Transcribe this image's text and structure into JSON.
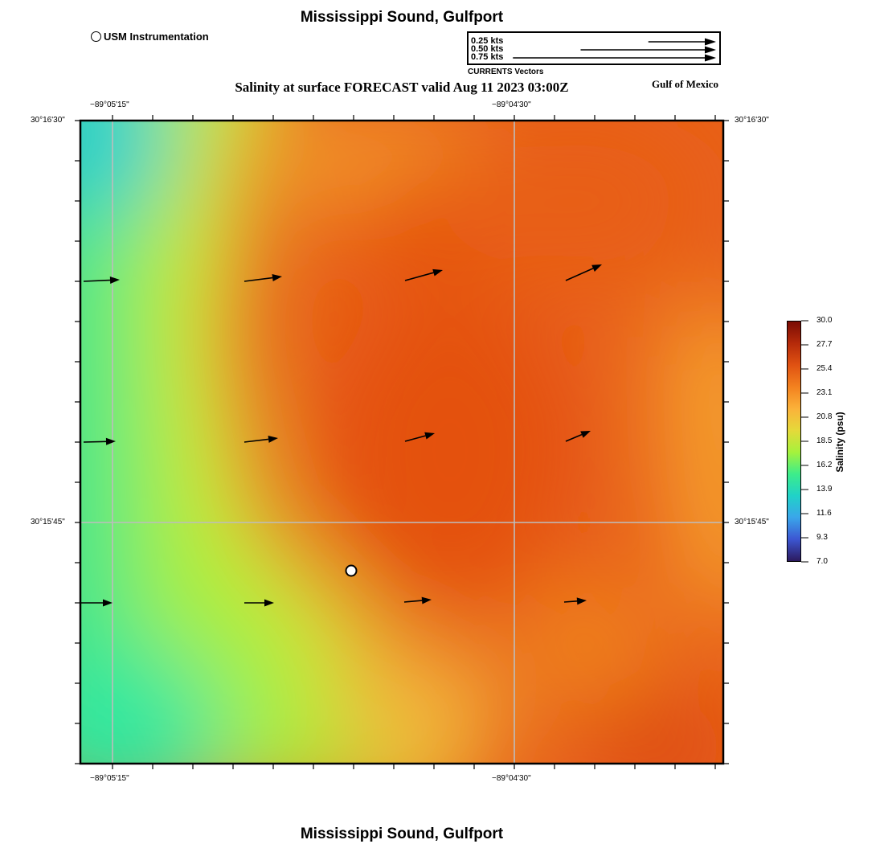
{
  "header": {
    "title_top": "Mississippi Sound, Gulfport",
    "title_bottom": "Mississippi Sound, Gulfport",
    "map_title": "Salinity at surface FORECAST valid Aug 11 2023 03:00Z",
    "region": "Gulf of Mexico"
  },
  "legend": {
    "station_label": "USM Instrumentation",
    "vector_labels": [
      "0.25 kts",
      "0.50 kts",
      "0.75 kts"
    ],
    "vector_speeds_kts": [
      0.25,
      0.5,
      0.75
    ],
    "vector_caption": "CURRENTS Vectors"
  },
  "map": {
    "lon_labels_top": [
      "−89°05'15\"",
      "−89°04'30\""
    ],
    "lon_labels_bottom": [
      "−89°05'15\"",
      "−89°04'30\""
    ],
    "lat_labels_left": [
      "30°16'30\"",
      "30°15'45\""
    ],
    "lat_labels_right": [
      "30°16'30\"",
      "30°15'45\""
    ],
    "colors": {
      "frame": "#000000",
      "grid": "#bdbdbd",
      "arrow": "#000000",
      "station_fill": "#ffffff"
    }
  },
  "colorbar": {
    "label": "Salinity (psu)",
    "ticks": [
      "30.0",
      "27.7",
      "25.4",
      "23.1",
      "20.8",
      "18.5",
      "16.2",
      "13.9",
      "11.6",
      "9.3",
      "7.0"
    ],
    "min": 7.0,
    "max": 30.0,
    "stops": [
      "#2c1a5e",
      "#3c56d2",
      "#3aa6ea",
      "#20d2c8",
      "#3ded8a",
      "#a6f23c",
      "#e5d93a",
      "#fbb23a",
      "#f3811f",
      "#e05212",
      "#b52a0a",
      "#7a0c04"
    ]
  }
}
